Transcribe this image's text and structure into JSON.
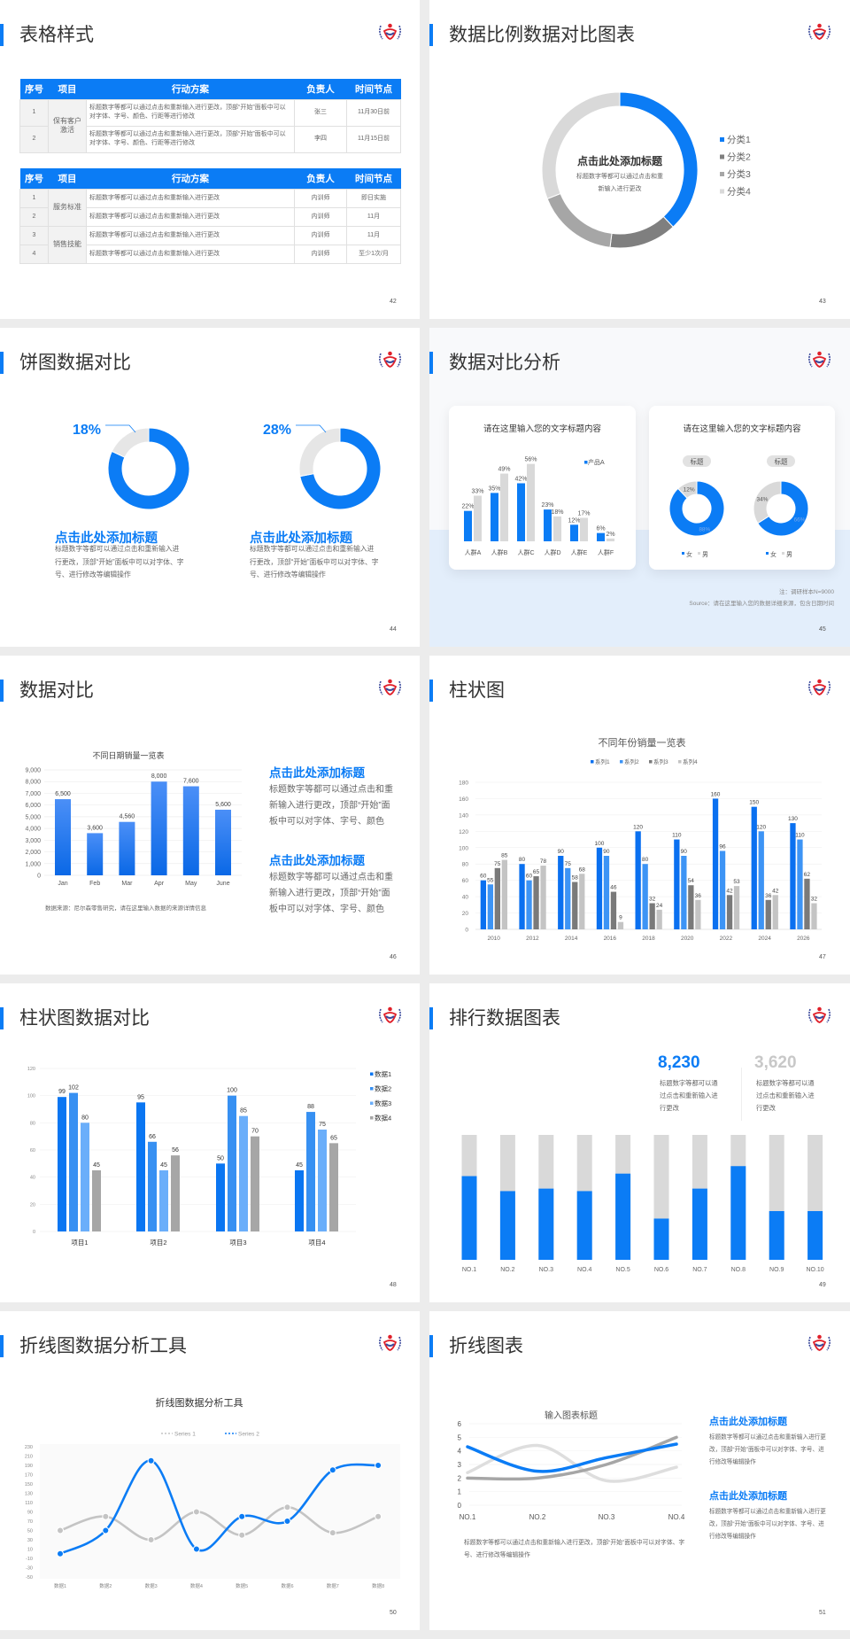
{
  "brand": {
    "logo_text": "CDCH",
    "accent": "#0b7cf5",
    "gray": "#d9d9d9"
  },
  "slides": {
    "s42": {
      "title": "表格样式",
      "page": "42",
      "table1": {
        "headers": [
          "序号",
          "项目",
          "行动方案",
          "负责人",
          "时间节点"
        ],
        "group": "保有客户激活",
        "rows": [
          {
            "no": "1",
            "plan": "标题数字等都可以通过点击和重新输入进行更改，顶部“开始”面板中可以对字体、字号、颜色、行距等进行修改",
            "owner": "张三",
            "time": "11月30日前"
          },
          {
            "no": "2",
            "plan": "标题数字等都可以通过点击和重新输入进行更改，顶部“开始”面板中可以对字体、字号、颜色、行距等进行修改",
            "owner": "李四",
            "time": "11月15日前"
          }
        ]
      },
      "table2": {
        "headers": [
          "序号",
          "项目",
          "行动方案",
          "负责人",
          "时间节点"
        ],
        "groups": [
          {
            "name": "服务标准",
            "rows": [
              {
                "no": "1",
                "plan": "标题数字等都可以通过点击和重新输入进行更改",
                "owner": "内训师",
                "time": "即日实施"
              },
              {
                "no": "2",
                "plan": "标题数字等都可以通过点击和重新输入进行更改",
                "owner": "内训师",
                "time": "11月"
              }
            ]
          },
          {
            "name": "销售技能",
            "rows": [
              {
                "no": "3",
                "plan": "标题数字等都可以通过点击和重新输入进行更改",
                "owner": "内训师",
                "time": "11月"
              },
              {
                "no": "4",
                "plan": "标题数字等都可以通过点击和重新输入进行更改",
                "owner": "内训师",
                "time": "至少1次/月"
              }
            ]
          }
        ]
      }
    },
    "s43": {
      "title": "数据比例数据对比图表",
      "page": "43",
      "center_title": "点击此处添加标题",
      "center_body": "标题数字等都可以通过点击和重新输入进行更改"
    },
    "s44": {
      "title": "饼图数据对比",
      "page": "44",
      "items": [
        {
          "heading": "点击此处添加标题",
          "body": "标题数字等都可以通过点击和重新输入进行更改，顶部“开始”面板中可以对字体、字号、进行修改等编辑操作"
        },
        {
          "heading": "点击此处添加标题",
          "body": "标题数字等都可以通过点击和重新输入进行更改，顶部“开始”面板中可以对字体、字号、进行修改等编辑操作"
        }
      ]
    },
    "s45": {
      "title": "数据对比分析",
      "page": "45",
      "card1_title": "请在这里输入您的文字标题内容",
      "card2_title": "请在这里输入您的文字标题内容",
      "note": "注：调研样本N=9000",
      "source": "Source：请在这里输入您的数据详细来源，包含日期时间"
    },
    "s46": {
      "title": "数据对比",
      "page": "46",
      "source": "数据来源：尼尔森零售研究，请在这里输入数据的来源详情信息",
      "items": [
        {
          "heading": "点击此处添加标题",
          "body": "标题数字等都可以通过点击和重新输入进行更改，顶部“开始”面板中可以对字体、字号、颜色"
        },
        {
          "heading": "点击此处添加标题",
          "body": "标题数字等都可以通过点击和重新输入进行更改，顶部“开始”面板中可以对字体、字号、颜色"
        }
      ]
    },
    "s47": {
      "title": "柱状图",
      "page": "47"
    },
    "s48": {
      "title": "柱状图数据对比",
      "page": "48"
    },
    "s49": {
      "title": "排行数据图表",
      "page": "49",
      "stats": [
        {
          "value": "8,230",
          "body": "标题数字等都可以通过点击和重新输入进行更改",
          "color": "#0b7cf5"
        },
        {
          "value": "3,620",
          "body": "标题数字等都可以通过点击和重新输入进行更改",
          "color": "#c8c8c8"
        }
      ]
    },
    "s50": {
      "title": "折线图数据分析工具",
      "page": "50"
    },
    "s51": {
      "title": "折线图表",
      "page": "51",
      "bottom_text": "标题数字等都可以通过点击和重新输入进行更改，顶部“开始”面板中可以对字体、字号、进行修改等编辑操作",
      "items": [
        {
          "heading": "点击此处添加标题",
          "body": "标题数字等都可以通过点击和重新输入进行更改，顶部“开始”面板中可以对字体、字号、进行修改等编辑操作"
        },
        {
          "heading": "点击此处添加标题",
          "body": "标题数字等都可以通过点击和重新输入进行更改，顶部“开始”面板中可以对字体、字号、进行修改等编辑操作"
        }
      ]
    }
  },
  "chart_data": [
    {
      "type": "pie",
      "donut": true,
      "categories": [
        "分类1",
        "分类2",
        "分类3",
        "分类4"
      ],
      "values": [
        38,
        14,
        17,
        31
      ],
      "colors": [
        "#0b7cf5",
        "#7f7f7f",
        "#a6a6a6",
        "#d9d9d9"
      ],
      "legend": "right"
    },
    {
      "type": "pie",
      "donut": true,
      "values": [
        82,
        18
      ],
      "label": "18%",
      "colors": [
        "#0b7cf5",
        "#e6e6e6"
      ]
    },
    {
      "type": "pie",
      "donut": true,
      "values": [
        72,
        28
      ],
      "label": "28%",
      "colors": [
        "#0b7cf5",
        "#e6e6e6"
      ]
    },
    {
      "type": "bar",
      "title": "请在这里输入您的文字标题内容",
      "categories": [
        "人群A",
        "人群B",
        "人群C",
        "人群D",
        "人群E",
        "人群F"
      ],
      "series": [
        {
          "name": "产品A",
          "values": [
            22,
            35,
            42,
            23,
            12,
            6
          ],
          "color": "#0b7cf5"
        },
        {
          "values": [
            33,
            49,
            56,
            18,
            17,
            2
          ],
          "color": "#d9d9d9"
        }
      ],
      "unit": "%",
      "legend": "top-right"
    },
    {
      "type": "pie",
      "donut": true,
      "title": "标题",
      "categories": [
        "女",
        "男"
      ],
      "values": [
        88,
        12
      ],
      "labels": [
        "88%",
        "12%"
      ],
      "colors": [
        "#0b7cf5",
        "#d9d9d9"
      ]
    },
    {
      "type": "pie",
      "donut": true,
      "title": "标题",
      "categories": [
        "女",
        "男"
      ],
      "values": [
        66,
        34
      ],
      "labels": [
        "66%",
        "34%"
      ],
      "colors": [
        "#0b7cf5",
        "#d9d9d9"
      ]
    },
    {
      "type": "bar",
      "title": "不同日期销量一览表",
      "categories": [
        "Jan",
        "Feb",
        "Mar",
        "Apr",
        "May",
        "June"
      ],
      "values": [
        6500,
        3600,
        4560,
        8000,
        7600,
        5600
      ],
      "labels": [
        "6,500",
        "3,600",
        "4,560",
        "8,000",
        "7,600",
        "5,600"
      ],
      "ylim": [
        0,
        9000
      ],
      "yticks": [
        "0",
        "1,000",
        "2,000",
        "3,000",
        "4,000",
        "5,000",
        "6,000",
        "7,000",
        "8,000",
        "9,000"
      ],
      "grid": true
    },
    {
      "type": "bar",
      "title": "不同年份销量一览表",
      "categories": [
        "2010",
        "2012",
        "2014",
        "2016",
        "2018",
        "2020",
        "2022",
        "2024",
        "2026"
      ],
      "series": [
        {
          "name": "系列1",
          "values": [
            60,
            80,
            90,
            100,
            120,
            110,
            160,
            150,
            130
          ],
          "color": "#0a70f0"
        },
        {
          "name": "系列2",
          "values": [
            55,
            60,
            75,
            90,
            80,
            90,
            96,
            120,
            110
          ],
          "color": "#3d94f5"
        },
        {
          "name": "系列3",
          "values": [
            75,
            65,
            58,
            46,
            32,
            54,
            42,
            36,
            62
          ],
          "color": "#7a7a7a"
        },
        {
          "name": "系列4",
          "values": [
            85,
            78,
            68,
            9,
            24,
            36,
            53,
            42,
            32
          ],
          "color": "#c4c4c4"
        }
      ],
      "ylim": [
        0,
        180
      ],
      "yticks": [
        "0",
        "20",
        "40",
        "60",
        "80",
        "100",
        "120",
        "140",
        "160",
        "180"
      ],
      "grid": true,
      "legend": "top"
    },
    {
      "type": "bar",
      "categories": [
        "项目1",
        "项目2",
        "项目3",
        "项目4"
      ],
      "series": [
        {
          "name": "数据1",
          "values": [
            99,
            95,
            50,
            45
          ],
          "color": "#0a76f2"
        },
        {
          "name": "数据2",
          "values": [
            102,
            66,
            100,
            88
          ],
          "color": "#3790f2"
        },
        {
          "name": "数据3",
          "values": [
            80,
            45,
            85,
            75
          ],
          "color": "#6aaefa"
        },
        {
          "name": "数据4",
          "values": [
            45,
            56,
            70,
            65
          ],
          "color": "#a6a6a6"
        }
      ],
      "ylim": [
        0,
        120
      ],
      "yticks": [
        "0",
        "20",
        "40",
        "60",
        "80",
        "100",
        "120"
      ],
      "grid": true,
      "legend": "right"
    },
    {
      "type": "bar",
      "stacked": true,
      "categories": [
        "NO.1",
        "NO.2",
        "NO.3",
        "NO.4",
        "NO.5",
        "NO.6",
        "NO.7",
        "NO.8",
        "NO.9",
        "NO.10"
      ],
      "values": [
        67,
        55,
        57,
        55,
        69,
        33,
        57,
        75,
        39,
        39
      ],
      "ylim": [
        0,
        100
      ],
      "colors": [
        "#0b7cf5",
        "#d9d9d9"
      ]
    },
    {
      "type": "line",
      "title": "折线图数据分析工具",
      "categories": [
        "数据1",
        "数据2",
        "数据3",
        "数据4",
        "数据5",
        "数据6",
        "数据7",
        "数据8"
      ],
      "series": [
        {
          "name": "Series 1",
          "values": [
            50,
            80,
            30,
            90,
            40,
            100,
            45,
            80
          ],
          "color": "#c4c4c4"
        },
        {
          "name": "Series 2",
          "values": [
            0,
            50,
            200,
            10,
            80,
            70,
            180,
            190
          ],
          "color": "#0b7cf5"
        }
      ],
      "ylim": [
        -50,
        230
      ],
      "yticks": [
        "-50",
        "-30",
        "-10",
        "10",
        "30",
        "50",
        "70",
        "90",
        "110",
        "130",
        "150",
        "170",
        "190",
        "210",
        "230"
      ],
      "legend": "top"
    },
    {
      "type": "line",
      "title": "输入图表标题",
      "categories": [
        "NO.1",
        "NO.2",
        "NO.3",
        "NO.4"
      ],
      "series": [
        {
          "values": [
            2.4,
            4.4,
            1.8,
            2.8
          ],
          "color": "#dedede"
        },
        {
          "values": [
            2,
            2,
            3,
            5
          ],
          "color": "#a6a6a6"
        },
        {
          "values": [
            4.3,
            2.5,
            3.5,
            4.5
          ],
          "color": "#0b7cf5"
        }
      ],
      "ylim": [
        0,
        6
      ],
      "yticks": [
        "0",
        "1",
        "2",
        "3",
        "4",
        "5",
        "6"
      ],
      "grid": true
    }
  ]
}
